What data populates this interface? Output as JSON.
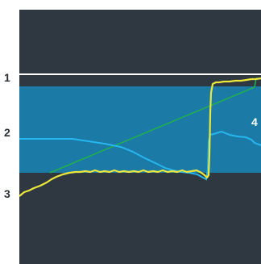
{
  "labels": {
    "one": "1",
    "two": "2",
    "three": "3",
    "four": "4"
  },
  "colors": {
    "panel": "#2f3741",
    "band": "#1b7aa6",
    "reference_line": "#ffffff",
    "yellow_trace": "#ece83a",
    "blue_trace": "#27b7ef",
    "green_trace": "#22b24c"
  }
}
